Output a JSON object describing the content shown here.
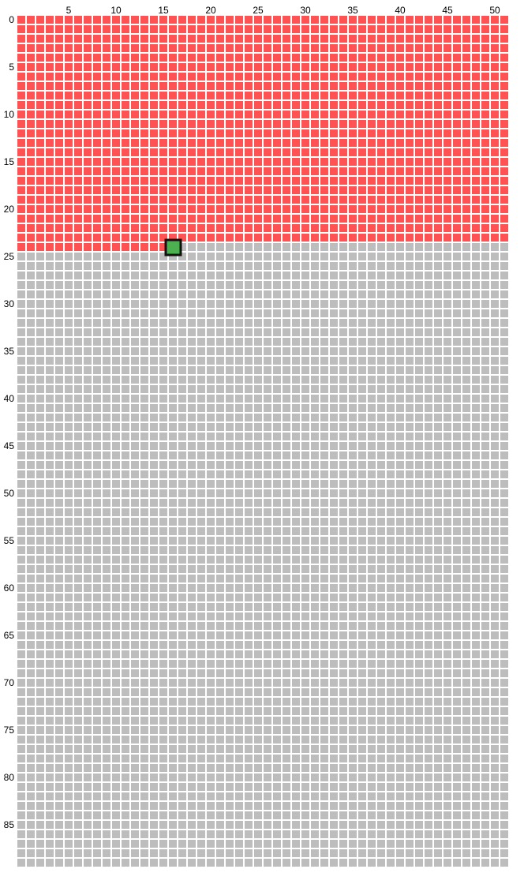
{
  "chart_data": {
    "type": "heatmap",
    "title": "",
    "xlabel": "",
    "ylabel": "",
    "columns": 52,
    "rows": 90,
    "x_ticks": [
      5,
      10,
      15,
      20,
      25,
      30,
      35,
      40,
      45,
      50
    ],
    "y_ticks": [
      0,
      5,
      10,
      15,
      20,
      25,
      30,
      35,
      40,
      45,
      50,
      55,
      60,
      65,
      70,
      75,
      80,
      85
    ],
    "filled_until": {
      "row": 24,
      "col": 16
    },
    "highlight_cell": {
      "row": 24,
      "col": 16
    },
    "grid": false,
    "legend": "none"
  },
  "colors": {
    "filled": "#ff5252",
    "empty": "#bdbdbd",
    "highlight_fill": "#4caf50",
    "highlight_border": "#111111",
    "background": "#ffffff"
  }
}
